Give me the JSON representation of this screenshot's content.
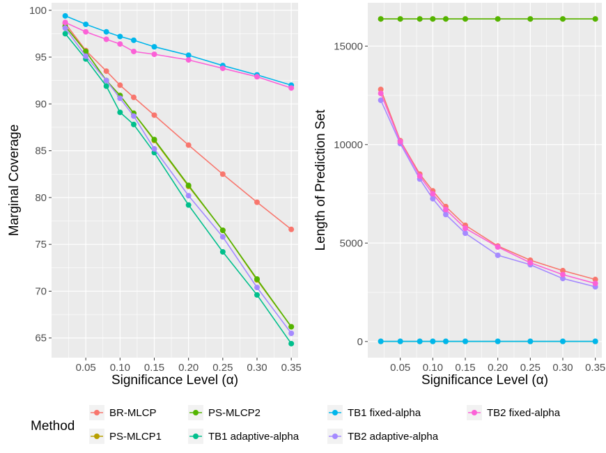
{
  "legend": {
    "title": "Method",
    "items": [
      {
        "name": "BR-MLCP",
        "color": "#F8766D"
      },
      {
        "name": "PS-MLCP1",
        "color": "#B79F00"
      },
      {
        "name": "PS-MLCP2",
        "color": "#53B400"
      },
      {
        "name": "TB1 adaptive-alpha",
        "color": "#00BF8C"
      },
      {
        "name": "TB1 fixed-alpha",
        "color": "#00B6EB"
      },
      {
        "name": "TB2 adaptive-alpha",
        "color": "#A58AFF"
      },
      {
        "name": "TB2 fixed-alpha",
        "color": "#FB61D7"
      }
    ]
  },
  "chart_data": [
    {
      "type": "line",
      "xlabel": "Significance Level (α)",
      "ylabel": "Marginal Coverage",
      "x": [
        0.02,
        0.05,
        0.08,
        0.1,
        0.12,
        0.15,
        0.2,
        0.25,
        0.3,
        0.35
      ],
      "xlim": [
        0.0,
        0.36
      ],
      "ylim": [
        62.9,
        100.8
      ],
      "xticks": [
        0.05,
        0.1,
        0.15,
        0.2,
        0.25,
        0.3,
        0.35
      ],
      "xtick_labels": [
        "0.05",
        "0.10",
        "0.15",
        "0.20",
        "0.25",
        "0.30",
        "0.35"
      ],
      "yticks": [
        65,
        70,
        75,
        80,
        85,
        90,
        95,
        100
      ],
      "ytick_labels": [
        "65",
        "70",
        "75",
        "80",
        "85",
        "90",
        "95",
        "100"
      ],
      "grid": true,
      "series": [
        {
          "name": "BR-MLCP",
          "values": [
            98.6,
            95.7,
            93.5,
            92.0,
            90.7,
            88.8,
            85.6,
            82.5,
            79.5,
            76.6
          ]
        },
        {
          "name": "PS-MLCP1",
          "values": [
            98.3,
            95.6,
            92.5,
            90.9,
            89.0,
            86.1,
            81.2,
            76.5,
            71.2,
            66.2
          ]
        },
        {
          "name": "PS-MLCP2",
          "values": [
            98.3,
            95.6,
            92.5,
            90.9,
            89.0,
            86.2,
            81.3,
            76.5,
            71.3,
            66.2
          ]
        },
        {
          "name": "TB1 adaptive-alpha",
          "values": [
            97.5,
            94.8,
            91.9,
            89.1,
            87.8,
            84.8,
            79.2,
            74.2,
            69.6,
            64.4
          ]
        },
        {
          "name": "TB1 fixed-alpha",
          "values": [
            99.4,
            98.5,
            97.7,
            97.2,
            96.8,
            96.1,
            95.2,
            94.1,
            93.1,
            92.0
          ]
        },
        {
          "name": "TB2 adaptive-alpha",
          "values": [
            98.1,
            95.1,
            92.5,
            90.6,
            88.7,
            85.2,
            80.2,
            75.8,
            70.4,
            65.5
          ]
        },
        {
          "name": "TB2 fixed-alpha",
          "values": [
            98.7,
            97.7,
            96.9,
            96.4,
            95.6,
            95.3,
            94.7,
            93.8,
            92.9,
            91.7
          ]
        }
      ]
    },
    {
      "type": "line",
      "xlabel": "Significance Level (α)",
      "ylabel": "Length of Prediction Set",
      "x": [
        0.02,
        0.05,
        0.08,
        0.1,
        0.12,
        0.15,
        0.2,
        0.25,
        0.3,
        0.35
      ],
      "xlim": [
        0.0,
        0.36
      ],
      "ylim": [
        -820,
        17200
      ],
      "xticks": [
        0.05,
        0.1,
        0.15,
        0.2,
        0.25,
        0.3,
        0.35
      ],
      "xtick_labels": [
        "0.05",
        "0.10",
        "0.15",
        "0.20",
        "0.25",
        "0.30",
        "0.35"
      ],
      "yticks": [
        0,
        5000,
        10000,
        15000
      ],
      "ytick_labels": [
        "0",
        "5000",
        "10000",
        "15000"
      ],
      "grid": true,
      "series": [
        {
          "name": "BR-MLCP",
          "values": [
            12800,
            10200,
            8500,
            7650,
            6850,
            5900,
            4850,
            4130,
            3600,
            3150
          ]
        },
        {
          "name": "PS-MLCP1",
          "values": [
            16380,
            16380,
            16380,
            16380,
            16380,
            16380,
            16380,
            16380,
            16380,
            16380
          ]
        },
        {
          "name": "PS-MLCP2",
          "values": [
            16380,
            16380,
            16380,
            16380,
            16380,
            16380,
            16380,
            16380,
            16380,
            16380
          ]
        },
        {
          "name": "TB1 adaptive-alpha",
          "values": [
            5,
            5,
            5,
            5,
            5,
            5,
            5,
            5,
            5,
            5
          ]
        },
        {
          "name": "TB1 fixed-alpha",
          "values": [
            10,
            10,
            10,
            10,
            10,
            10,
            10,
            10,
            10,
            10
          ]
        },
        {
          "name": "TB2 adaptive-alpha",
          "values": [
            12250,
            10050,
            8250,
            7250,
            6450,
            5500,
            4380,
            3900,
            3200,
            2780
          ]
        },
        {
          "name": "TB2 fixed-alpha",
          "values": [
            12600,
            10150,
            8400,
            7500,
            6700,
            5750,
            4800,
            4000,
            3400,
            2950
          ]
        }
      ]
    }
  ]
}
